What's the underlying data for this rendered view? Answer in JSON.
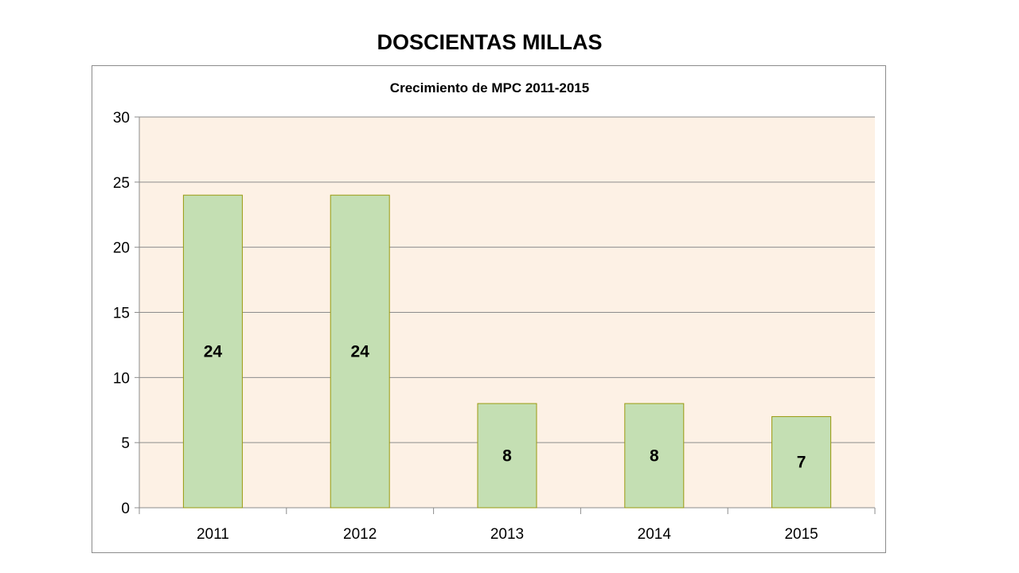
{
  "slide": {
    "title": "DOSCIENTAS MILLAS"
  },
  "chart_data": {
    "type": "bar",
    "title": "Crecimiento de MPC 2011-2015",
    "xlabel": "",
    "ylabel": "",
    "categories": [
      "2011",
      "2012",
      "2013",
      "2014",
      "2015"
    ],
    "values": [
      24,
      24,
      8,
      8,
      7
    ],
    "data_labels": [
      "24",
      "24",
      "8",
      "8",
      "7"
    ],
    "ylim": [
      0,
      30
    ],
    "y_ticks": [
      0,
      5,
      10,
      15,
      20,
      25,
      30
    ],
    "grid": true,
    "legend": "none",
    "colors": {
      "bar_fill": "#c4dfb3",
      "bar_stroke": "#9a9a10",
      "plot_background": "#fdf1e5",
      "gridline": "#8c8c8c",
      "axis": "#8c8c8c"
    }
  }
}
